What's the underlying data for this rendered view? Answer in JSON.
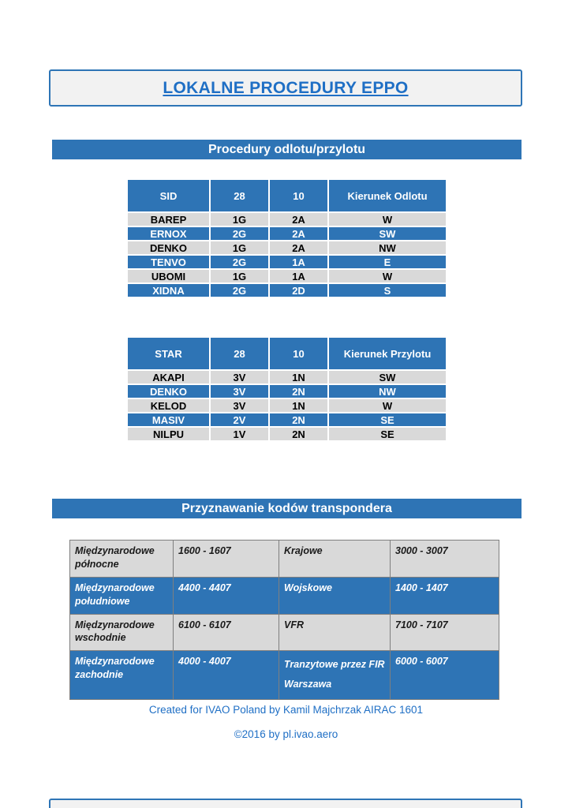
{
  "doc": {
    "title": "LOKALNE PROCEDURY EPPO",
    "section_departures_title": "Procedury odlotu/przylotu",
    "section_transponder_title": "Przyznawanie kodów transpondera"
  },
  "tables": {
    "sid": {
      "headers": [
        "SID",
        "28",
        "10",
        "Kierunek Odlotu"
      ],
      "rows": [
        [
          "BAREP",
          "1G",
          "2A",
          "W"
        ],
        [
          "ERNOX",
          "2G",
          "2A",
          "SW"
        ],
        [
          "DENKO",
          "1G",
          "2A",
          "NW"
        ],
        [
          "TENVO",
          "2G",
          "1A",
          "E"
        ],
        [
          "UBOMI",
          "1G",
          "1A",
          "W"
        ],
        [
          "XIDNA",
          "2G",
          "2D",
          "S"
        ]
      ]
    },
    "star": {
      "headers": [
        "STAR",
        "28",
        "10",
        "Kierunek Przylotu"
      ],
      "rows": [
        [
          "AKAPI",
          "3V",
          "1N",
          "SW"
        ],
        [
          "DENKO",
          "3V",
          "2N",
          "NW"
        ],
        [
          "KELOD",
          "3V",
          "1N",
          "W"
        ],
        [
          "MASIV",
          "2V",
          "2N",
          "SE"
        ],
        [
          "NILPU",
          "1V",
          "2N",
          "SE"
        ]
      ]
    },
    "transponder": {
      "rows": [
        [
          "Międzynarodowe północne",
          "1600 - 1607",
          "Krajowe",
          "3000 - 3007"
        ],
        [
          "Międzynarodowe południowe",
          "4400 - 4407",
          "Wojskowe",
          "1400 - 1407"
        ],
        [
          "Międzynarodowe wschodnie",
          "6100 - 6107",
          "VFR",
          "7100 - 7107"
        ],
        [
          "Międzynarodowe zachodnie",
          "4000 - 4007",
          "Tranzytowe przez FIR Warszawa",
          "6000 - 6007"
        ]
      ]
    }
  },
  "footer": {
    "line1": "Created for IVAO Poland by Kamil Majchrzak AIRAC 1601",
    "line2": "©2016 by pl.ivao.aero"
  },
  "colors": {
    "accent_blue": "#2e74b5",
    "title_text_blue": "#1f6fc5",
    "row_gray": "#d9d9d9",
    "border_gray": "#7f7f7f",
    "box_fill": "#f2f2f2"
  }
}
